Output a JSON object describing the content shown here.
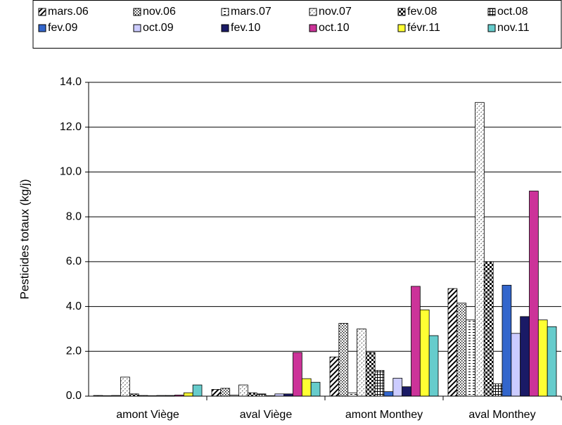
{
  "chart_data": {
    "type": "bar",
    "y_label": "Pesticides totaux (kg/j)",
    "categories": [
      "amont Viège",
      "aval Viège",
      "amont Monthey",
      "aval Monthey"
    ],
    "ylim": [
      0,
      14
    ],
    "grid": true,
    "yticks": [
      {
        "value": 0,
        "label": "0.0"
      },
      {
        "value": 2,
        "label": "2.0"
      },
      {
        "value": 4,
        "label": "4.0"
      },
      {
        "value": 6,
        "label": "6.0"
      },
      {
        "value": 8,
        "label": "8.0"
      },
      {
        "value": 10,
        "label": "10.0"
      },
      {
        "value": 12,
        "label": "12.0"
      },
      {
        "value": 14,
        "label": "14.0"
      }
    ],
    "series": [
      {
        "name": "mars.06",
        "pattern": "hatch",
        "values": [
          0.03,
          0.3,
          1.75,
          4.8
        ]
      },
      {
        "name": "nov.06",
        "pattern": "dots",
        "values": [
          0.02,
          0.35,
          3.25,
          4.15
        ]
      },
      {
        "name": "mars.07",
        "pattern": "dashes",
        "values": [
          0.03,
          0.05,
          0.15,
          3.4
        ]
      },
      {
        "name": "nov.07",
        "pattern": "dots2",
        "values": [
          0.85,
          0.5,
          3.0,
          13.1
        ]
      },
      {
        "name": "fev.08",
        "pattern": "check",
        "values": [
          0.1,
          0.15,
          1.95,
          6.0
        ]
      },
      {
        "name": "oct.08",
        "pattern": "grid",
        "values": [
          0.03,
          0.1,
          1.15,
          0.55
        ]
      },
      {
        "name": "fev.09",
        "color": "#3366cc",
        "values": [
          0.02,
          0.02,
          0.2,
          4.95
        ]
      },
      {
        "name": "oct.09",
        "color": "#ccccff",
        "values": [
          0.03,
          0.1,
          0.8,
          2.8
        ]
      },
      {
        "name": "fev.10",
        "color": "#1a1a66",
        "values": [
          0.03,
          0.1,
          0.42,
          3.55
        ]
      },
      {
        "name": "oct.10",
        "color": "#cc3399",
        "values": [
          0.05,
          1.95,
          4.9,
          9.15
        ]
      },
      {
        "name": "févr.11",
        "color": "#ffff33",
        "values": [
          0.15,
          0.78,
          3.85,
          3.4
        ]
      },
      {
        "name": "nov.11",
        "color": "#66cccc",
        "values": [
          0.5,
          0.62,
          2.7,
          3.1
        ]
      }
    ]
  }
}
